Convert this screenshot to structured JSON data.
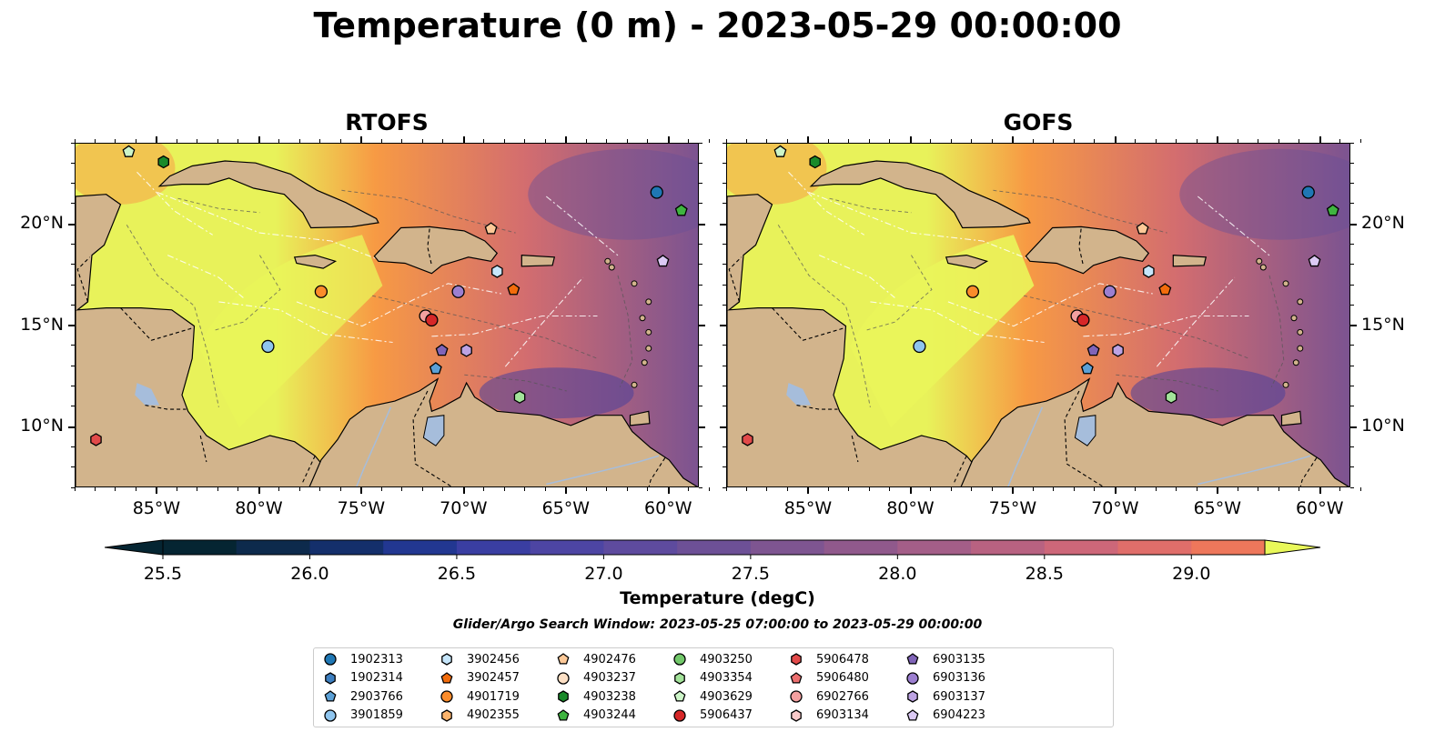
{
  "figure": {
    "title": "Temperature (0 m) - 2023-05-29 00:00:00",
    "search_window": "Glider/Argo Search Window: 2023-05-25 07:00:00 to 2023-05-29 00:00:00"
  },
  "panels": [
    {
      "title": "RTOFS"
    },
    {
      "title": "GOFS"
    }
  ],
  "axes": {
    "lon_ticks": [
      -85,
      -80,
      -75,
      -70,
      -65,
      -60
    ],
    "lon_labels": [
      "85°W",
      "80°W",
      "75°W",
      "70°W",
      "65°W",
      "60°W"
    ],
    "lat_ticks": [
      10,
      15,
      20
    ],
    "lat_labels": [
      "10°N",
      "15°N",
      "20°N"
    ],
    "lon_range": [
      -89,
      -58.5
    ],
    "lat_range": [
      7,
      24
    ]
  },
  "colorbar": {
    "label": "Temperature (degC)",
    "min": 25.5,
    "max": 29.25,
    "step": 0.25,
    "ticks": [
      25.5,
      26.0,
      26.5,
      27.0,
      27.5,
      28.0,
      28.5,
      29.0
    ],
    "tick_labels": [
      "25.5",
      "26.0",
      "26.5",
      "27.0",
      "27.5",
      "28.0",
      "28.5",
      "29.0"
    ],
    "extend": "both",
    "colors": [
      "#052532",
      "#0d2a4c",
      "#142f6b",
      "#223791",
      "#3a3ea2",
      "#4d45a3",
      "#5e4b9e",
      "#6d5096",
      "#7e5591",
      "#90598c",
      "#a45e88",
      "#b86281",
      "#cd6779",
      "#e06e6a",
      "#ee775b",
      "#f6854c",
      "#fa953f",
      "#fbac3d",
      "#f7c645",
      "#f0e04f"
    ],
    "over_color": "#e9f85a"
  },
  "colors": {
    "land": "#d2b48c",
    "lakes": "#a6bddb",
    "boundary": "#000000"
  },
  "legend": {
    "items": [
      {
        "label": "1902313",
        "color": "#1f77b4",
        "marker": "circle"
      },
      {
        "label": "1902314",
        "color": "#3d7fc0",
        "marker": "hexagon"
      },
      {
        "label": "2903766",
        "color": "#5ba0d6",
        "marker": "pentagon"
      },
      {
        "label": "3901859",
        "color": "#8fc5ee",
        "marker": "circle"
      },
      {
        "label": "3902456",
        "color": "#c6e6fb",
        "marker": "hexagon"
      },
      {
        "label": "3902457",
        "color": "#f26c0c",
        "marker": "pentagon"
      },
      {
        "label": "4901719",
        "color": "#fb8c2b",
        "marker": "circle"
      },
      {
        "label": "4902355",
        "color": "#fdb46c",
        "marker": "hexagon"
      },
      {
        "label": "4902476",
        "color": "#fdc998",
        "marker": "pentagon"
      },
      {
        "label": "4903237",
        "color": "#fde0c5",
        "marker": "circle"
      },
      {
        "label": "4903238",
        "color": "#1a8a2a",
        "marker": "hexagon"
      },
      {
        "label": "4903244",
        "color": "#3fb440",
        "marker": "pentagon"
      },
      {
        "label": "4903250",
        "color": "#72c86a",
        "marker": "circle"
      },
      {
        "label": "4903354",
        "color": "#a3e39a",
        "marker": "hexagon"
      },
      {
        "label": "4903629",
        "color": "#cdf5c8",
        "marker": "pentagon"
      },
      {
        "label": "5906437",
        "color": "#d62728",
        "marker": "circle"
      },
      {
        "label": "5906478",
        "color": "#e24a4a",
        "marker": "hexagon"
      },
      {
        "label": "5906480",
        "color": "#ec6f6f",
        "marker": "pentagon"
      },
      {
        "label": "6902766",
        "color": "#f4a0a0",
        "marker": "circle"
      },
      {
        "label": "6903134",
        "color": "#fbcaca",
        "marker": "hexagon"
      },
      {
        "label": "6903135",
        "color": "#8064b8",
        "marker": "pentagon"
      },
      {
        "label": "6903136",
        "color": "#9c7fd0",
        "marker": "circle"
      },
      {
        "label": "6903137",
        "color": "#bda3e3",
        "marker": "hexagon"
      },
      {
        "label": "6904223",
        "color": "#dccaf5",
        "marker": "pentagon"
      }
    ]
  },
  "observations": [
    {
      "id": "4903629",
      "lon": -86.4,
      "lat": 23.6
    },
    {
      "id": "4903238",
      "lon": -84.7,
      "lat": 23.1
    },
    {
      "id": "1902313",
      "lon": -60.6,
      "lat": 21.6
    },
    {
      "id": "4903244",
      "lon": -59.4,
      "lat": 20.7
    },
    {
      "id": "4902476",
      "lon": -68.7,
      "lat": 19.8
    },
    {
      "id": "6904223",
      "lon": -60.3,
      "lat": 18.2
    },
    {
      "id": "3902456",
      "lon": -68.4,
      "lat": 17.7
    },
    {
      "id": "3902457",
      "lon": -67.6,
      "lat": 16.8
    },
    {
      "id": "4901719",
      "lon": -77.0,
      "lat": 16.7
    },
    {
      "id": "6903136",
      "lon": -70.3,
      "lat": 16.7
    },
    {
      "id": "6902766",
      "lon": -71.9,
      "lat": 15.5
    },
    {
      "id": "5906437",
      "lon": -71.6,
      "lat": 15.3
    },
    {
      "id": "3901859",
      "lon": -79.6,
      "lat": 14.0
    },
    {
      "id": "6903135",
      "lon": -71.1,
      "lat": 13.8
    },
    {
      "id": "6903137",
      "lon": -69.9,
      "lat": 13.8
    },
    {
      "id": "2903766",
      "lon": -71.4,
      "lat": 12.9
    },
    {
      "id": "4903354",
      "lon": -67.3,
      "lat": 11.5
    },
    {
      "id": "5906478",
      "lon": -88.0,
      "lat": 9.4
    }
  ]
}
